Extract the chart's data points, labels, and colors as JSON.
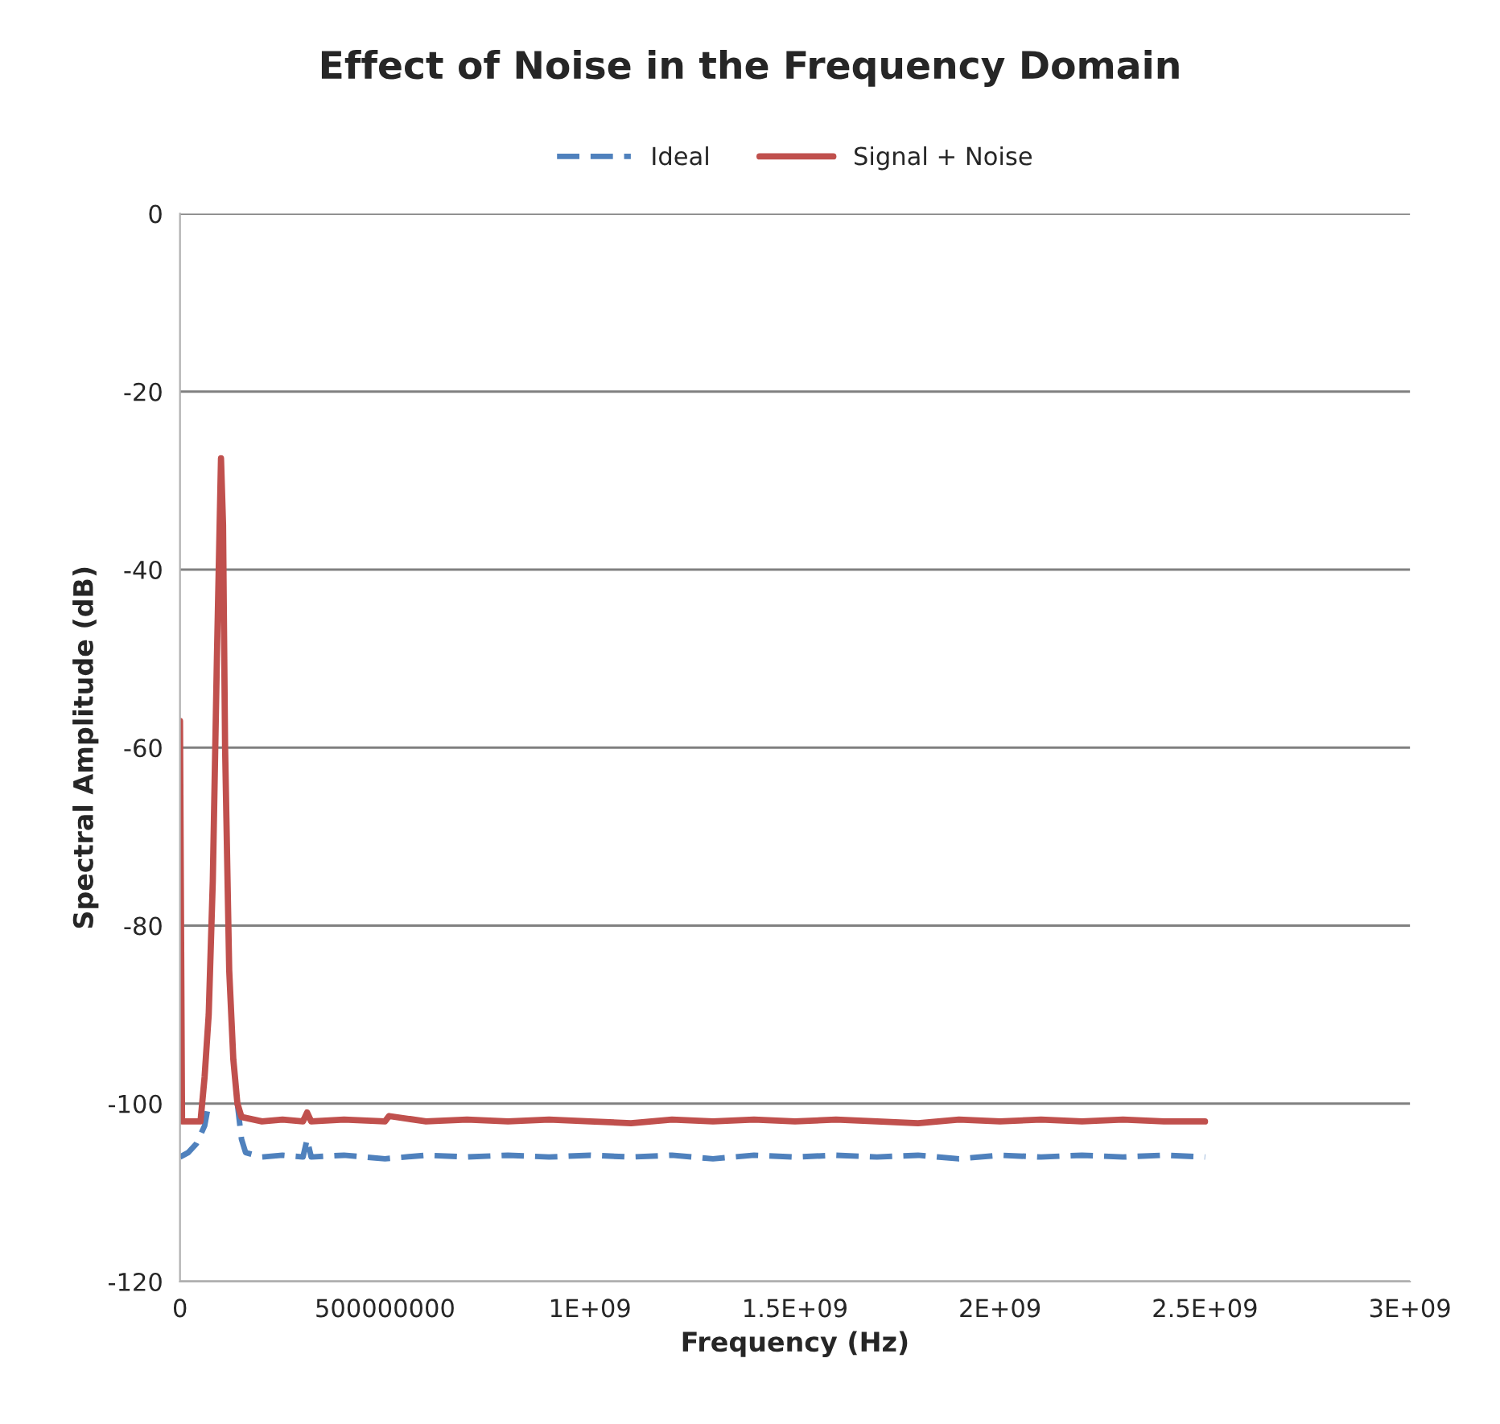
{
  "chart_data": {
    "type": "line",
    "title": "Effect of Noise in the Frequency Domain",
    "xlabel": "Frequency (Hz)",
    "ylabel": "Spectral Amplitude (dB)",
    "xlim": [
      0,
      3000000000
    ],
    "xticks": [
      0,
      {
        "value": 500000000,
        "label": "500000000"
      },
      {
        "value": 1000000000,
        "label": "1E+09"
      },
      {
        "value": 1500000000,
        "label": "1.5E+09"
      },
      {
        "value": 2000000000,
        "label": "2E+09"
      },
      {
        "value": 2500000000,
        "label": "2.5E+09"
      },
      {
        "value": 3000000000,
        "label": "3E+09"
      }
    ],
    "ylim": [
      -120,
      0
    ],
    "yticks": [
      -120,
      -100,
      -80,
      -60,
      -40,
      -20,
      0
    ],
    "grid": "y",
    "legend": "top",
    "marker": "none",
    "series": [
      {
        "name": "Ideal",
        "color": "#4f81bd",
        "line_style": "dashed",
        "x": [
          0,
          20000000,
          40000000,
          60000000,
          70000000,
          80000000,
          130000000,
          140000000,
          150000000,
          160000000,
          200000000,
          250000000,
          300000000,
          310000000,
          320000000,
          400000000,
          500000000,
          600000000,
          700000000,
          800000000,
          900000000,
          1000000000,
          1100000000,
          1200000000,
          1300000000,
          1400000000,
          1500000000,
          1600000000,
          1700000000,
          1800000000,
          1900000000,
          2000000000,
          2100000000,
          2200000000,
          2300000000,
          2400000000,
          2500000000
        ],
        "values": [
          -106,
          -105.5,
          -104.5,
          -102.5,
          -100,
          null,
          null,
          -100,
          -104,
          -105.5,
          -106,
          -105.8,
          -106,
          -104,
          -106,
          -105.8,
          -106.2,
          -105.8,
          -106,
          -105.8,
          -106,
          -105.8,
          -106,
          -105.8,
          -106.2,
          -105.8,
          -106,
          -105.8,
          -106,
          -105.8,
          -106.2,
          -105.8,
          -106,
          -105.8,
          -106,
          -105.8,
          -106
        ]
      },
      {
        "name": "Signal + Noise",
        "color": "#c0504d",
        "line_style": "solid",
        "x": [
          0,
          5000000,
          30000000,
          50000000,
          60000000,
          70000000,
          80000000,
          90000000,
          100000000,
          105000000,
          110000000,
          120000000,
          130000000,
          140000000,
          150000000,
          200000000,
          250000000,
          300000000,
          310000000,
          320000000,
          400000000,
          500000000,
          510000000,
          600000000,
          700000000,
          800000000,
          900000000,
          1000000000,
          1100000000,
          1200000000,
          1300000000,
          1400000000,
          1500000000,
          1600000000,
          1700000000,
          1800000000,
          1900000000,
          2000000000,
          2100000000,
          2200000000,
          2300000000,
          2400000000,
          2500000000
        ],
        "values": [
          -57,
          -102,
          -102,
          -102,
          -97,
          -90,
          -75,
          -50,
          -27.5,
          -35,
          -60,
          -85,
          -95,
          -100,
          -101.5,
          -102,
          -101.8,
          -102,
          -101,
          -102,
          -101.8,
          -102,
          -101.4,
          -102,
          -101.8,
          -102,
          -101.8,
          -102,
          -102.2,
          -101.8,
          -102,
          -101.8,
          -102,
          -101.8,
          -102,
          -102.2,
          -101.8,
          -102,
          -101.8,
          -102,
          -101.8,
          -102,
          -102
        ]
      }
    ]
  }
}
